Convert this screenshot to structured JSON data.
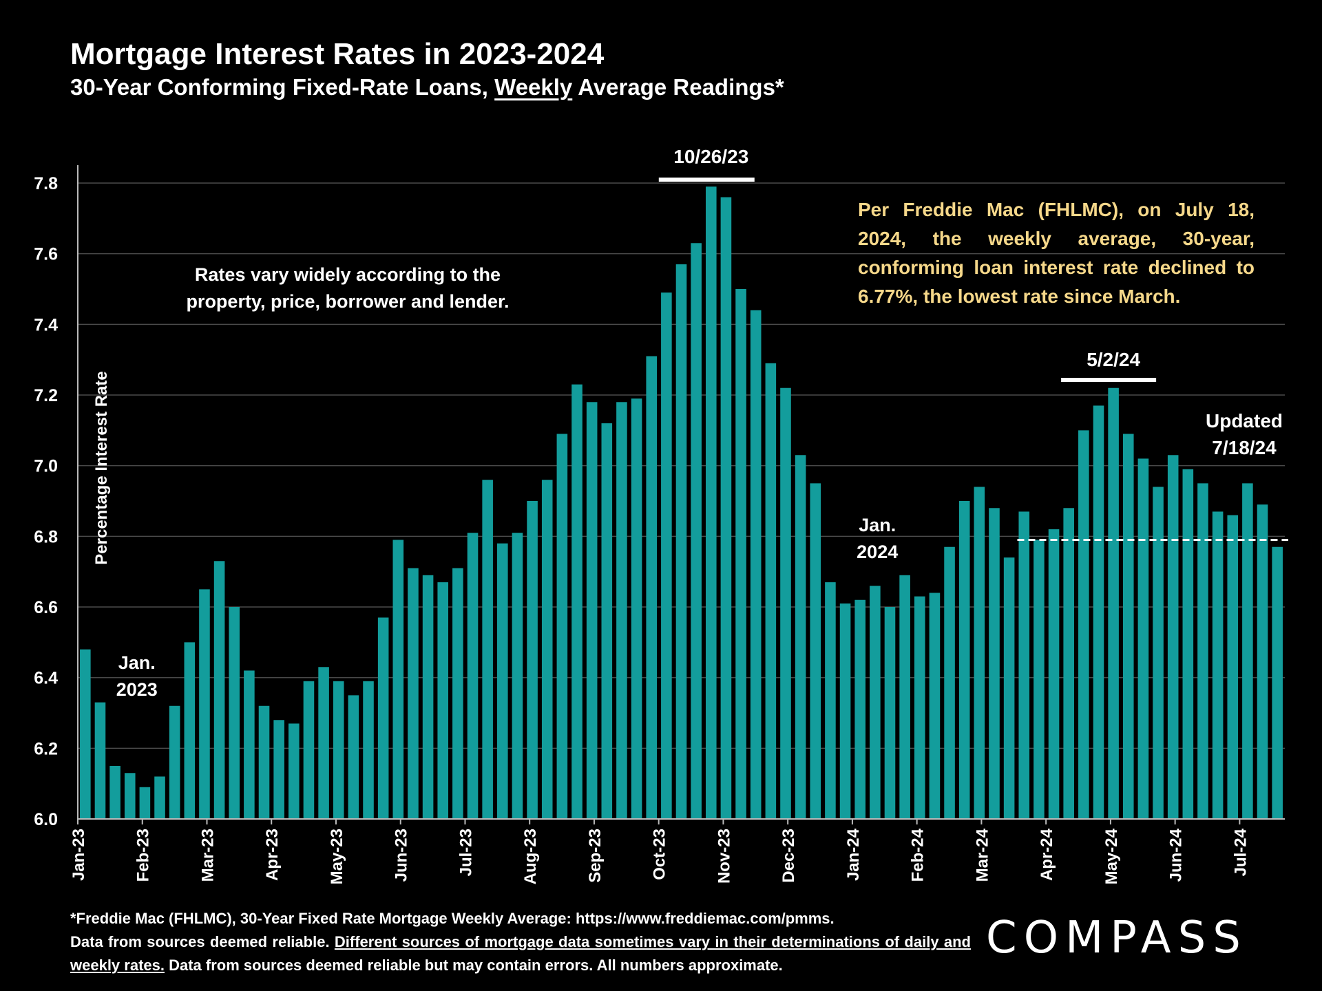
{
  "title": "Mortgage Interest Rates in 2023-2024",
  "subtitle": {
    "before": "30-Year Conforming Fixed-Rate Loans, ",
    "underlined": "Weekly",
    "after": " Average Readings*"
  },
  "note_left": "Rates vary widely according to the property, price, borrower and lender.",
  "note_right": "Per Freddie Mac (FHLMC), on July 18, 2024, the weekly average, 30-year, conforming loan interest rate declined to 6.77%, the lowest rate since March.",
  "footer": {
    "line1": "*Freddie Mac (FHLMC), 30-Year Fixed Rate Mortgage Weekly Average:  https://www.freddiemac.com/pmms.",
    "part2a": "Data from sources deemed reliable. ",
    "part2_underlined": "Different sources of mortgage data sometimes vary in their determinations of daily and weekly rates.",
    "part2b": " Data from sources deemed reliable but may contain errors. All numbers approximate."
  },
  "logo": "COMPASS",
  "colors": {
    "background": "#000000",
    "bar": "#139d9c",
    "note_right": "#f6d88a",
    "grid": "#4a4a4a",
    "text": "#ffffff"
  },
  "chart_data": {
    "type": "bar",
    "ylabel": "Percentage Interest  Rate",
    "ylim": [
      6.0,
      7.8
    ],
    "yticks": [
      "6.0",
      "6.2",
      "6.4",
      "6.6",
      "6.8",
      "7.0",
      "7.2",
      "7.4",
      "7.6",
      "7.8"
    ],
    "grid": true,
    "month_labels": [
      "Jan-23",
      "Feb-23",
      "Mar-23",
      "Apr-23",
      "May-23",
      "Jun-23",
      "Jul-23",
      "Aug-23",
      "Sep-23",
      "Oct-23",
      "Nov-23",
      "Dec-23",
      "Jan-24",
      "Feb-24",
      "Mar-24",
      "Apr-24",
      "May-24",
      "Jun-24",
      "Jul-24"
    ],
    "values": [
      6.48,
      6.33,
      6.15,
      6.13,
      6.09,
      6.12,
      6.32,
      6.5,
      6.65,
      6.73,
      6.6,
      6.42,
      6.32,
      6.28,
      6.27,
      6.39,
      6.43,
      6.39,
      6.35,
      6.39,
      6.57,
      6.79,
      6.71,
      6.69,
      6.67,
      6.71,
      6.81,
      6.96,
      6.78,
      6.81,
      6.9,
      6.96,
      7.09,
      7.23,
      7.18,
      7.12,
      7.18,
      7.19,
      7.31,
      7.49,
      7.57,
      7.63,
      7.79,
      7.76,
      7.5,
      7.44,
      7.29,
      7.22,
      7.03,
      6.95,
      6.67,
      6.61,
      6.62,
      6.66,
      6.6,
      6.69,
      6.63,
      6.64,
      6.77,
      6.9,
      6.94,
      6.88,
      6.74,
      6.87,
      6.79,
      6.82,
      6.88,
      7.1,
      7.17,
      7.22,
      7.09,
      7.02,
      6.94,
      7.03,
      6.99,
      6.95,
      6.87,
      6.86,
      6.95,
      6.89,
      6.77
    ],
    "annotations": [
      {
        "text": "10/26/23",
        "bar_index": 42
      },
      {
        "text": "5/2/24",
        "bar_index": 69
      },
      {
        "lines": [
          "Jan.",
          "2023"
        ],
        "bar_index": 3
      },
      {
        "lines": [
          "Jan.",
          "2024"
        ],
        "bar_index": 52
      },
      {
        "lines": [
          "Updated",
          "7/18/24"
        ],
        "bar_index": 80
      }
    ],
    "reference_line": {
      "value": 6.79,
      "style": "dashed",
      "from_bar": 63,
      "to_bar": 80
    }
  }
}
